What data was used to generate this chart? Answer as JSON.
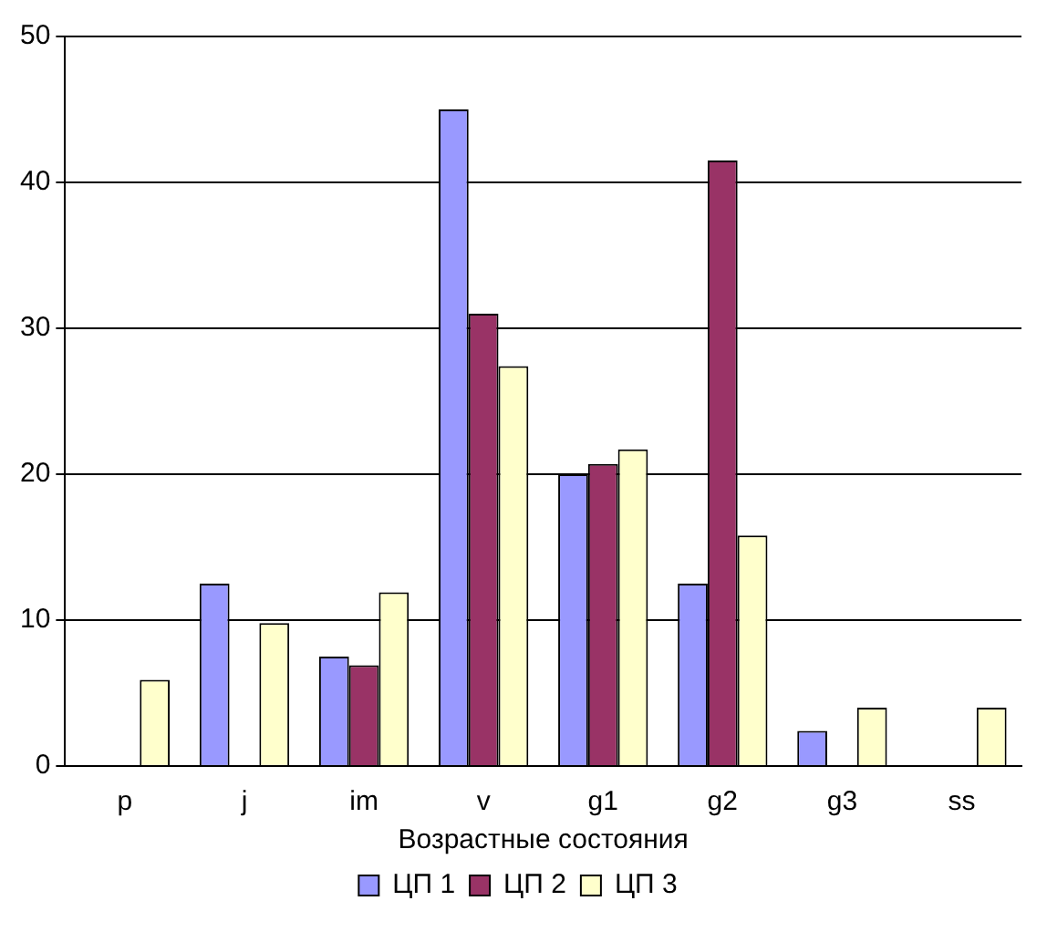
{
  "chart_data": {
    "type": "bar",
    "xlabel": "Возрастные состояния",
    "categories": [
      "p",
      "j",
      "im",
      "v",
      "g1",
      "g2",
      "g3",
      "ss"
    ],
    "series": [
      {
        "name": "ЦП 1",
        "color": "#9999ff",
        "values": [
          null,
          12.5,
          7.5,
          45.0,
          20.0,
          12.5,
          2.4,
          null
        ]
      },
      {
        "name": "ЦП 2",
        "color": "#993366",
        "values": [
          null,
          null,
          6.9,
          31.0,
          20.7,
          41.5,
          null,
          null
        ]
      },
      {
        "name": "ЦП 3",
        "color": "#ffffcc",
        "values": [
          5.9,
          9.8,
          11.9,
          27.4,
          21.7,
          15.8,
          4.0,
          4.0
        ]
      }
    ],
    "ylim": [
      0,
      50
    ],
    "yticks": [
      0,
      10,
      20,
      30,
      40,
      50
    ],
    "grid": "y",
    "legend": "bottom"
  }
}
